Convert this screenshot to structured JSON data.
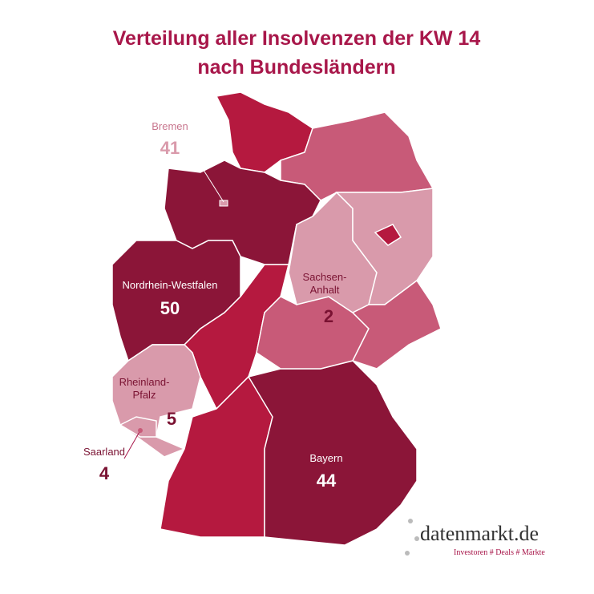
{
  "title": [
    "Verteilung aller Insolvenzen der KW 14",
    "nach Bundesländern"
  ],
  "regions": [
    {
      "name": "Bremen",
      "value": 41
    },
    {
      "name": "Nordrhein-Westfalen",
      "value": 50
    },
    {
      "name": [
        "Sachsen-",
        "Anhalt"
      ],
      "value": 2
    },
    {
      "name": [
        "Rheinland-",
        "Pfalz"
      ],
      "value": 5
    },
    {
      "name": "Saarland",
      "value": 4
    },
    {
      "name": "Bayern",
      "value": 44
    }
  ],
  "logo": {
    "name": "datenmarkt.de",
    "tagline": "Investoren # Deals # Märkte"
  }
}
